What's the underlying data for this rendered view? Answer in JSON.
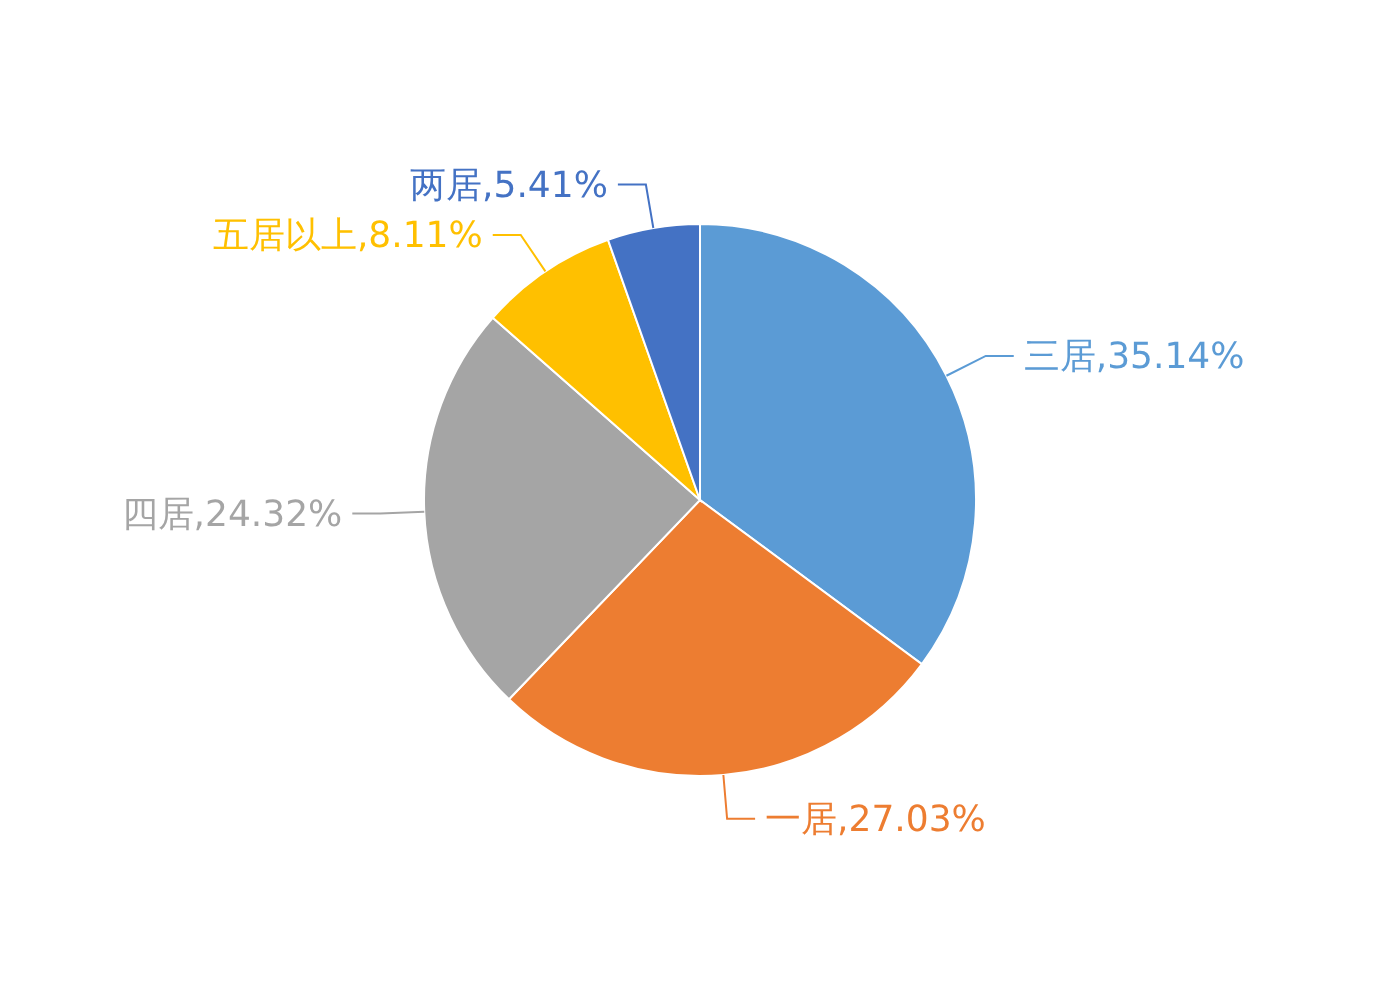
{
  "chart_data": {
    "type": "pie",
    "categories": [
      "三居",
      "一居",
      "四居",
      "五居以上",
      "两居"
    ],
    "values": [
      35.14,
      27.03,
      24.32,
      8.11,
      5.41
    ],
    "colors": [
      "#5b9bd5",
      "#ed7d31",
      "#a5a5a5",
      "#ffc000",
      "#4472c4"
    ],
    "value_labels": [
      "35.14%",
      "27.03%",
      "24.32%",
      "8.11%",
      "5.41%"
    ]
  }
}
